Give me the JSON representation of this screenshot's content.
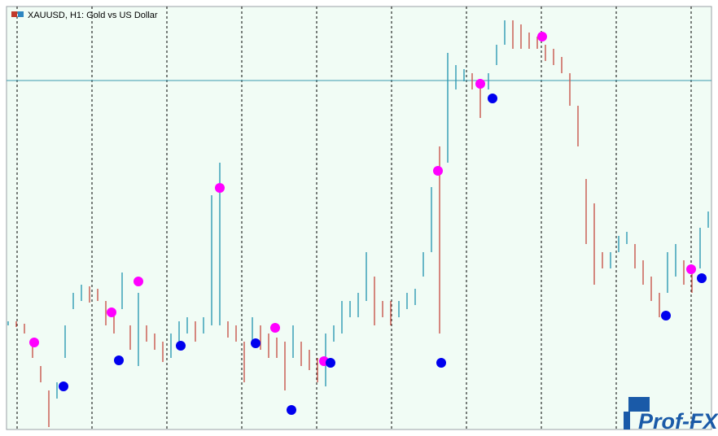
{
  "chart_data": {
    "type": "ohlc",
    "title": "XAUUSD, H1: Gold vs US Dollar",
    "watermark": "Prof-FX",
    "xlim": [
      0,
      86
    ],
    "ylim": [
      0,
      520
    ],
    "up_color": "#2e9ab3",
    "down_color": "#c9554b",
    "high": [
      133,
      133,
      130,
      108,
      78,
      48,
      58,
      128,
      168,
      178,
      176,
      173,
      158,
      148,
      193,
      128,
      168,
      128,
      118,
      108,
      118,
      133,
      138,
      133,
      138,
      288,
      328,
      133,
      128,
      108,
      138,
      128,
      118,
      113,
      108,
      128,
      108,
      98,
      88,
      118,
      128,
      158,
      158,
      168,
      218,
      188,
      158,
      158,
      158,
      168,
      173,
      218,
      298,
      348,
      463,
      448,
      443,
      438,
      428,
      438,
      473,
      503,
      503,
      498,
      488,
      483,
      473,
      468,
      458,
      438,
      398,
      308,
      278,
      218,
      218,
      238,
      243,
      228,
      208,
      188,
      168,
      218,
      228,
      208,
      198,
      248,
      268
    ],
    "low": [
      128,
      126,
      118,
      88,
      58,
      3,
      38,
      88,
      148,
      158,
      156,
      158,
      128,
      118,
      148,
      98,
      78,
      108,
      98,
      83,
      88,
      108,
      118,
      108,
      118,
      128,
      128,
      113,
      108,
      58,
      108,
      98,
      88,
      88,
      48,
      88,
      78,
      73,
      58,
      53,
      108,
      118,
      138,
      138,
      158,
      128,
      138,
      128,
      138,
      148,
      153,
      188,
      218,
      118,
      328,
      418,
      428,
      418,
      383,
      418,
      448,
      473,
      468,
      468,
      468,
      468,
      453,
      448,
      438,
      398,
      348,
      228,
      178,
      198,
      198,
      218,
      228,
      198,
      178,
      158,
      138,
      168,
      188,
      178,
      168,
      198,
      248
    ],
    "hline": 429,
    "hline_color": "#3a9ab0",
    "sell_signals": {
      "color": "#ff00ff",
      "x": [
        3.2,
        12.7,
        16,
        26,
        32.8,
        38.8,
        52.8,
        58,
        65.6,
        83.9
      ],
      "values": [
        107,
        144,
        182,
        297,
        125,
        84,
        318,
        425,
        483,
        197
      ]
    },
    "buy_signals": {
      "color": "#0000ee",
      "x": [
        6.8,
        13.6,
        21.2,
        30.4,
        34.8,
        39.6,
        53.2,
        59.5,
        80.8,
        85.2
      ],
      "values": [
        53,
        85,
        103,
        106,
        24,
        82,
        82,
        407,
        140,
        186
      ]
    }
  }
}
